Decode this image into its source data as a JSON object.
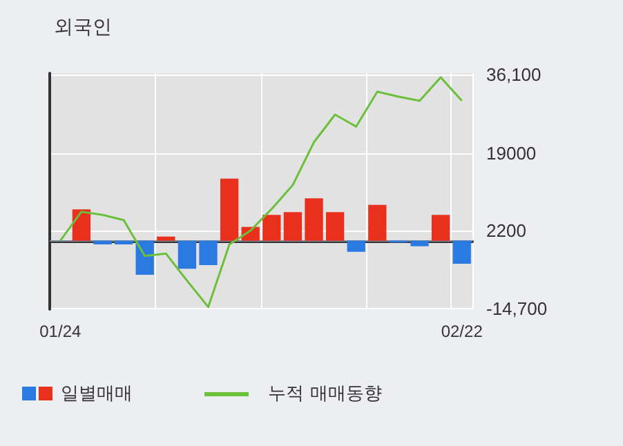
{
  "chart_data": {
    "type": "bar",
    "title": "외국인",
    "categories": [
      "01/24",
      null,
      null,
      null,
      null,
      null,
      null,
      null,
      null,
      null,
      null,
      null,
      null,
      null,
      null,
      null,
      null,
      null,
      null,
      "02/22"
    ],
    "series": [
      {
        "name": "일별매매",
        "values": [
          null,
          6800,
          -800,
          -800,
          -7400,
          900,
          -6100,
          -5300,
          13500,
          3000,
          5600,
          6200,
          9200,
          6200,
          -2400,
          7800,
          -400,
          -1200,
          5600,
          -5000
        ],
        "colors": [
          "#2a7ae2",
          "#e8301c",
          "#2a7ae2",
          "#2a7ae2",
          "#2a7ae2",
          "#e8301c",
          "#2a7ae2",
          "#2a7ae2",
          "#e8301c",
          "#e8301c",
          "#e8301c",
          "#e8301c",
          "#e8301c",
          "#e8301c",
          "#2a7ae2",
          "#e8301c",
          "#2a7ae2",
          "#2a7ae2",
          "#e8301c",
          "#2a7ae2"
        ]
      },
      {
        "name": "누적 매매동향",
        "type": "line",
        "color": "#6cbf3a",
        "values": [
          0,
          6300,
          5600,
          4500,
          -3300,
          -2800,
          -8700,
          -14400,
          -800,
          2200,
          6900,
          12100,
          21400,
          27400,
          24800,
          32400,
          31300,
          30400,
          35500,
          30400
        ]
      }
    ],
    "ylim": [
      -14900,
      36400
    ],
    "yticks": [
      {
        "value": -14700,
        "label": "-14,700"
      },
      {
        "value": 2200,
        "label": "2200"
      },
      {
        "value": 19000,
        "label": "19000"
      },
      {
        "value": 36100,
        "label": "36,100"
      }
    ],
    "ref_lines": [
      {
        "axis": "y",
        "value": 0,
        "color": "#7a8899"
      }
    ],
    "grid": true,
    "legend": "bottom",
    "marker": "none"
  }
}
